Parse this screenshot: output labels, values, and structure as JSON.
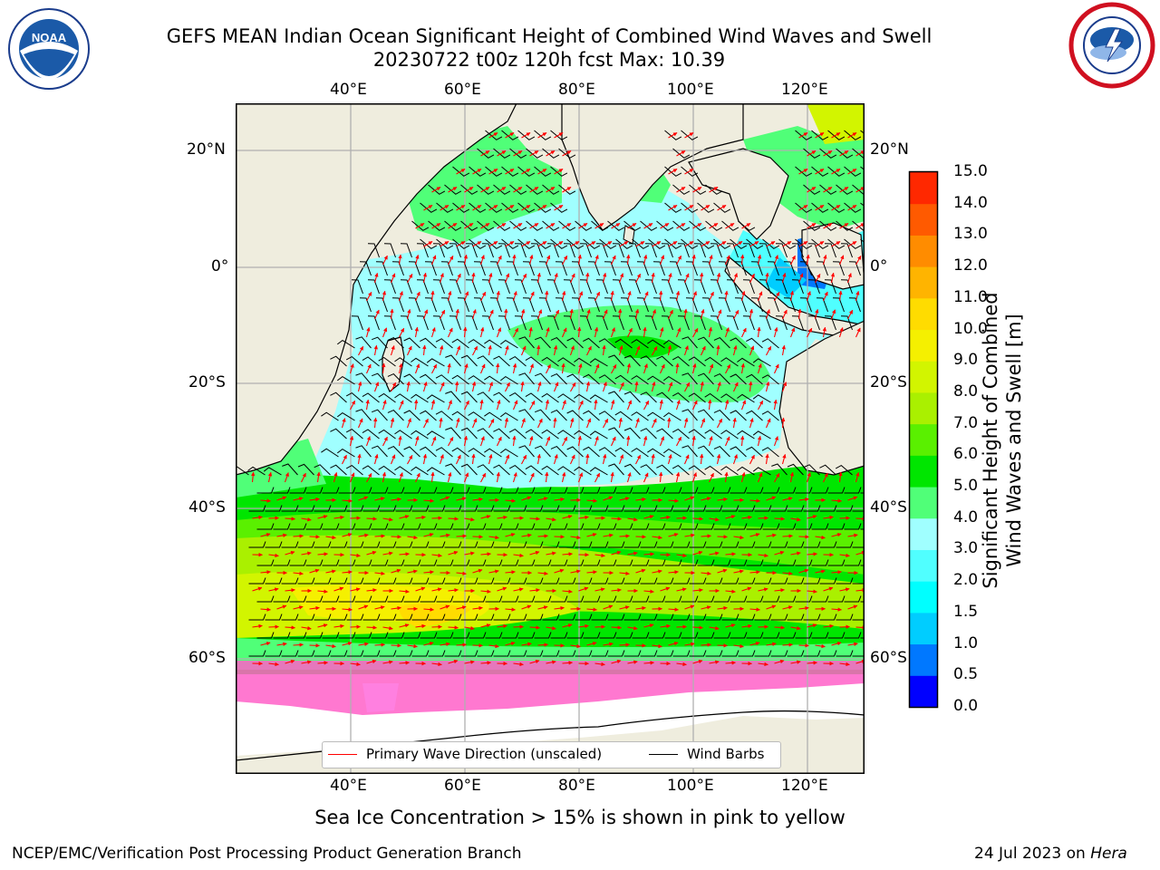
{
  "header": {
    "title_line1": "GEFS MEAN Indian Ocean Significant Height of Combined Wind Waves and Swell",
    "title_line2": "20230722 t00z 120h fcst   Max: 10.39"
  },
  "logos": {
    "left": {
      "icon": "noaa-logo-icon",
      "text": "NOAA"
    },
    "right": {
      "icon": "nws-logo-icon"
    }
  },
  "map": {
    "lon_labels": [
      "40°E",
      "60°E",
      "80°E",
      "100°E",
      "120°E"
    ],
    "lat_labels": [
      "20°N",
      "0°",
      "20°S",
      "40°S",
      "60°S"
    ],
    "colors": {
      "land": "#efedde",
      "ice_free_white": "#ffffff",
      "gridline": "#b0b0b0"
    }
  },
  "colorbar": {
    "title_line1": "Significant Height of Combined",
    "title_line2": "Wind Waves and Swell [m]",
    "ticks": [
      "0.0",
      "0.5",
      "1.0",
      "1.5",
      "2.0",
      "3.0",
      "4.0",
      "5.0",
      "6.0",
      "7.0",
      "8.0",
      "9.0",
      "10.0",
      "11.0",
      "12.0",
      "13.0",
      "14.0",
      "15.0"
    ],
    "colors": [
      "#0000ff",
      "#0078ff",
      "#00cdff",
      "#00ffff",
      "#50ffff",
      "#a0ffff",
      "#50ff78",
      "#00e600",
      "#5af000",
      "#aaf000",
      "#d2f500",
      "#f5f000",
      "#ffdc00",
      "#ffb400",
      "#ff8c00",
      "#ff5a00",
      "#ff2800"
    ]
  },
  "legend": {
    "wave_label": "Primary Wave Direction (unscaled)",
    "wave_color": "#ff0000",
    "wind_label": "Wind Barbs",
    "wind_color": "#000000"
  },
  "notes": {
    "ice": "Sea Ice Concentration > 15% is shown in pink to yellow",
    "branch": "NCEP/EMC/Verification Post Processing Product Generation Branch",
    "date": "24 Jul 2023 on ",
    "host": "Hera"
  }
}
